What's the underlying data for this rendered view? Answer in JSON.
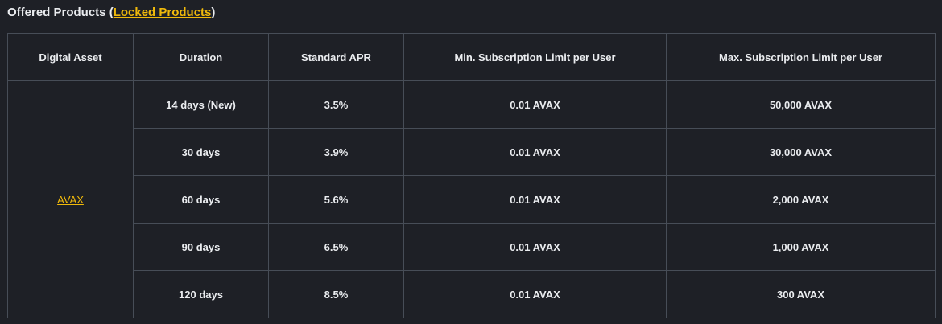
{
  "heading": {
    "title": "Offered Products",
    "open_paren": " (",
    "link_label": "Locked Products",
    "close_paren": ")"
  },
  "table": {
    "columns": [
      "Digital Asset",
      "Duration",
      "Standard APR",
      "Min. Subscription Limit per User",
      "Max. Subscription Limit per User"
    ],
    "asset": "AVAX",
    "rows": [
      {
        "duration": "14 days",
        "tag": "(New)",
        "apr": "3.5%",
        "min": "0.01 AVAX",
        "max": "50,000 AVAX"
      },
      {
        "duration": "30 days",
        "tag": "",
        "apr": "3.9%",
        "min": "0.01 AVAX",
        "max": "30,000 AVAX"
      },
      {
        "duration": "60 days",
        "tag": "",
        "apr": "5.6%",
        "min": "0.01 AVAX",
        "max": "2,000 AVAX"
      },
      {
        "duration": "90 days",
        "tag": "",
        "apr": "6.5%",
        "min": "0.01 AVAX",
        "max": "1,000 AVAX"
      },
      {
        "duration": "120 days",
        "tag": "",
        "apr": "8.5%",
        "min": "0.01 AVAX",
        "max": "300 AVAX"
      }
    ]
  },
  "colors": {
    "background": "#1e2026",
    "border": "#474d57",
    "text": "#eaecef",
    "accent": "#f0b90b"
  }
}
